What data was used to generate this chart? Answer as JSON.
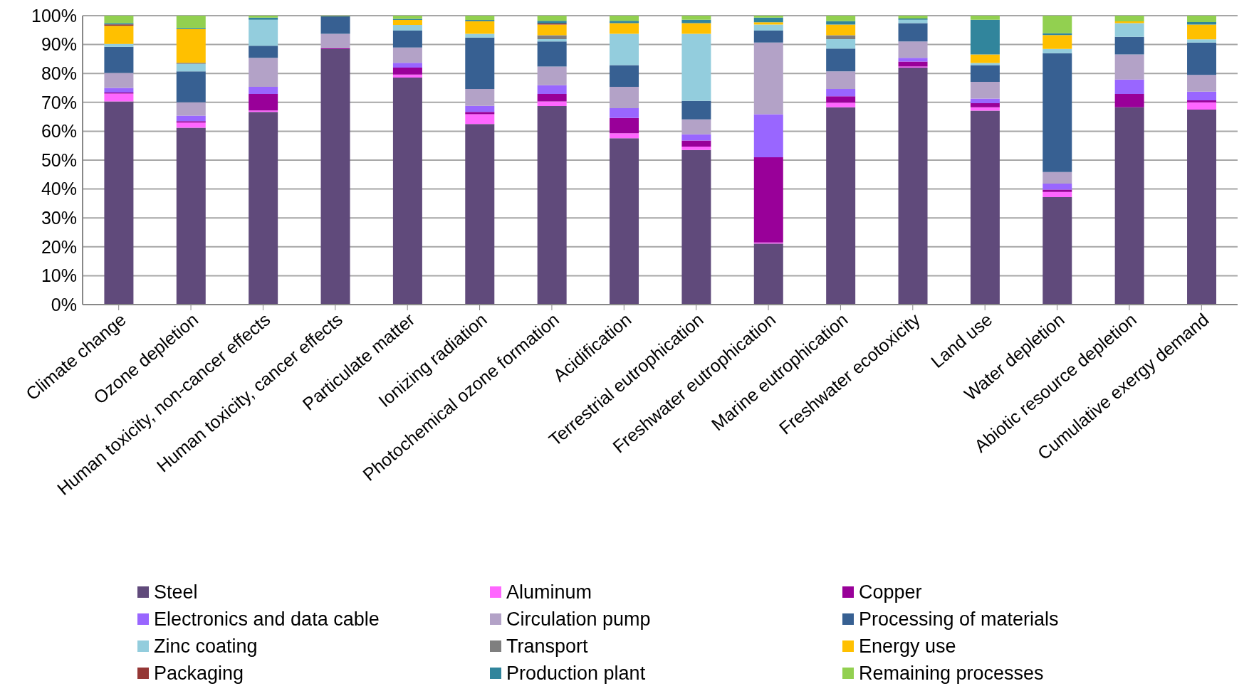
{
  "chart_data": {
    "type": "bar",
    "stacked": true,
    "categories": [
      "Climate change",
      "Ozone depletion",
      "Human toxicity, non-cancer effects",
      "Human toxicity, cancer effects",
      "Particulate matter",
      "Ionizing radiation",
      "Photochemical ozone formation",
      "Acidification",
      "Terrestrial eutrophication",
      "Freshwater eutrophication",
      "Marine eutrophication",
      "Freshwater ecotoxicity",
      "Land use",
      "Water depletion",
      "Abiotic resource depletion",
      "Cumulative exergy demand"
    ],
    "series": [
      {
        "name": "Steel",
        "color": "#604a7b",
        "values": [
          70.3,
          61.2,
          66.7,
          88.4,
          78.6,
          62.5,
          68.7,
          57.6,
          53.5,
          21.1,
          68.3,
          82.0,
          67.1,
          37.2,
          68.3,
          67.5
        ]
      },
      {
        "name": "Aluminum",
        "color": "#ff66ff",
        "values": [
          2.7,
          1.8,
          0.5,
          0,
          1.0,
          3.4,
          1.6,
          1.7,
          1.2,
          0.4,
          1.6,
          0.4,
          1.2,
          1.8,
          0,
          2.5
        ]
      },
      {
        "name": "Copper",
        "color": "#990099",
        "values": [
          0.4,
          0.5,
          5.7,
          0.3,
          2.4,
          0.8,
          2.6,
          5.3,
          2.1,
          29.5,
          2.2,
          1.7,
          1.4,
          0.8,
          4.6,
          0.7
        ]
      },
      {
        "name": "Electronics and data cable",
        "color": "#9966ff",
        "values": [
          1.6,
          1.9,
          2.5,
          0,
          1.7,
          2.1,
          3.0,
          3.4,
          2.1,
          14.9,
          2.5,
          1.3,
          1.6,
          2.1,
          5.0,
          3.0
        ]
      },
      {
        "name": "Circulation pump",
        "color": "#b3a2c7",
        "values": [
          5.2,
          4.6,
          10.0,
          5.0,
          5.3,
          5.8,
          6.5,
          7.4,
          5.2,
          24.8,
          6.1,
          5.7,
          5.8,
          4.0,
          8.7,
          5.8
        ]
      },
      {
        "name": "Processing of materials",
        "color": "#376092",
        "values": [
          9.0,
          10.7,
          4.2,
          6.1,
          5.8,
          17.8,
          8.7,
          7.5,
          6.4,
          4.1,
          7.9,
          6.3,
          5.8,
          41.1,
          6.1,
          11.2
        ]
      },
      {
        "name": "Zinc coating",
        "color": "#93cddd",
        "values": [
          1.0,
          2.6,
          9.0,
          0,
          2.0,
          1.3,
          0.8,
          10.8,
          23.2,
          2.1,
          3.3,
          1.2,
          0.7,
          1.5,
          4.7,
          1.1
        ]
      },
      {
        "name": "Transport",
        "color": "#7f7f7f",
        "values": [
          0,
          0.4,
          0,
          0,
          0,
          0,
          1.3,
          0,
          0,
          0,
          1.3,
          0,
          0,
          0,
          0,
          0
        ]
      },
      {
        "name": "Energy use",
        "color": "#ffc000",
        "values": [
          6.3,
          11.6,
          0,
          0,
          1.7,
          4.4,
          3.7,
          3.7,
          3.7,
          0.8,
          3.7,
          0,
          3.0,
          4.8,
          0.6,
          5.1
        ]
      },
      {
        "name": "Packaging",
        "color": "#953735",
        "values": [
          0.5,
          0,
          0,
          0,
          0,
          0,
          0.4,
          0,
          0,
          0,
          0,
          0,
          0,
          0,
          0,
          0
        ]
      },
      {
        "name": "Production plant",
        "color": "#31859c",
        "values": [
          0.4,
          0.4,
          0.7,
          0,
          0.4,
          0.4,
          0.9,
          0.8,
          1.2,
          1.6,
          1.2,
          0.4,
          12.0,
          0.6,
          0,
          0.9
        ]
      },
      {
        "name": "Remaining processes",
        "color": "#92d050",
        "values": [
          2.6,
          4.3,
          0.7,
          0.2,
          1.1,
          1.5,
          1.8,
          1.8,
          1.4,
          0.7,
          1.9,
          1.0,
          1.4,
          6.1,
          2.0,
          2.2
        ]
      }
    ],
    "ylim": [
      0,
      100
    ],
    "yticks": [
      {
        "value": 0,
        "label": "0%"
      },
      {
        "value": 10,
        "label": "10%"
      },
      {
        "value": 20,
        "label": "20%"
      },
      {
        "value": 30,
        "label": "30%"
      },
      {
        "value": 40,
        "label": "40%"
      },
      {
        "value": 50,
        "label": "50%"
      },
      {
        "value": 60,
        "label": "60%"
      },
      {
        "value": 70,
        "label": "70%"
      },
      {
        "value": 80,
        "label": "80%"
      },
      {
        "value": 90,
        "label": "90%"
      },
      {
        "value": 100,
        "label": "100%"
      }
    ],
    "grid": "y",
    "legend": "bottom"
  }
}
